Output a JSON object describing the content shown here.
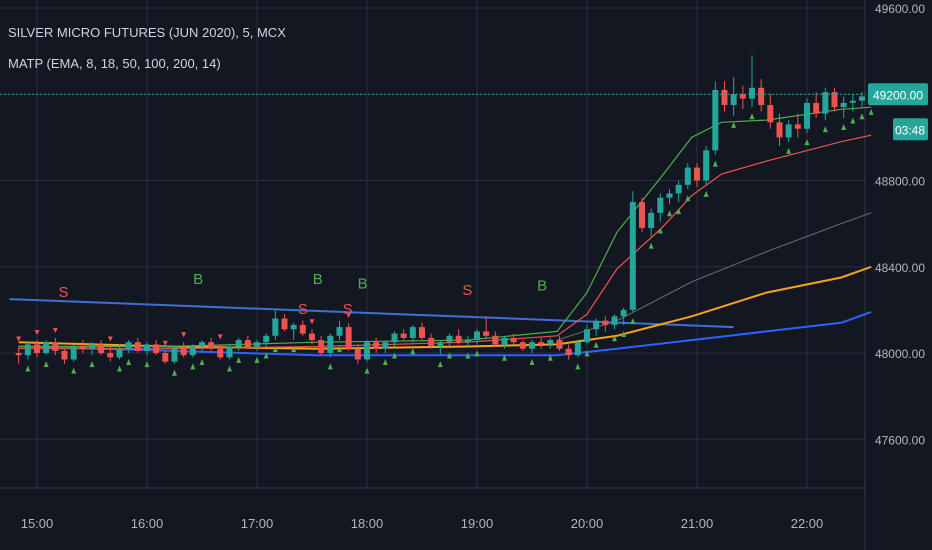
{
  "header": {
    "title": "SILVER MICRO FUTURES (JUN 2020), 5, MCX",
    "indicator": "MATP (EMA, 8, 18, 50, 100, 200, 14)"
  },
  "colors": {
    "background": "#131722",
    "grid": "#2a2e39",
    "axis_text": "#b2b5be",
    "up": "#26a69a",
    "down": "#ef5350",
    "price_label_bg": "#26a69a",
    "ema8": "#4caf50",
    "ema18": "#ef5350",
    "ema50": "#5d606b",
    "ema100": "#f7a21b",
    "ema200": "#2962ff",
    "trendline": "#3d6fd6"
  },
  "chart_data": {
    "type": "candlestick",
    "x_tick_labels": [
      "15:00",
      "16:00",
      "17:00",
      "18:00",
      "19:00",
      "20:00",
      "21:00",
      "22:00"
    ],
    "y_tick_labels": [
      "49600.00",
      "49200.00",
      "48800.00",
      "48400.00",
      "48000.00",
      "47600.00"
    ],
    "ylim": [
      47450,
      49700
    ],
    "current_price": "49200.00",
    "countdown": "03:48",
    "grid": true,
    "candles": [
      [
        48000,
        48030,
        47950,
        47990
      ],
      [
        47990,
        48050,
        47970,
        48040
      ],
      [
        48040,
        48060,
        47980,
        48000
      ],
      [
        48000,
        48060,
        47990,
        48050
      ],
      [
        48050,
        48070,
        47990,
        48010
      ],
      [
        48010,
        48020,
        47950,
        47970
      ],
      [
        47970,
        48040,
        47960,
        48030
      ],
      [
        48030,
        48060,
        48000,
        48020
      ],
      [
        48020,
        48050,
        47990,
        48040
      ],
      [
        48040,
        48060,
        47990,
        48000
      ],
      [
        48000,
        48030,
        47960,
        47980
      ],
      [
        47980,
        48040,
        47970,
        48020
      ],
      [
        48020,
        48060,
        48000,
        48050
      ],
      [
        48050,
        48070,
        48000,
        48010
      ],
      [
        48010,
        48050,
        47990,
        48040
      ],
      [
        48040,
        48060,
        47990,
        48000
      ],
      [
        48000,
        48010,
        47950,
        47960
      ],
      [
        47960,
        48030,
        47950,
        48020
      ],
      [
        48020,
        48050,
        47980,
        47990
      ],
      [
        47990,
        48040,
        47980,
        48030
      ],
      [
        48030,
        48060,
        48000,
        48050
      ],
      [
        48050,
        48070,
        48010,
        48020
      ],
      [
        48020,
        48040,
        47970,
        47980
      ],
      [
        47980,
        48040,
        47970,
        48030
      ],
      [
        48030,
        48070,
        48010,
        48060
      ],
      [
        48060,
        48080,
        48020,
        48030
      ],
      [
        48030,
        48060,
        48010,
        48050
      ],
      [
        48050,
        48090,
        48030,
        48080
      ],
      [
        48080,
        48200,
        48060,
        48160
      ],
      [
        48160,
        48180,
        48100,
        48110
      ],
      [
        48110,
        48140,
        48060,
        48130
      ],
      [
        48130,
        48150,
        48080,
        48090
      ],
      [
        48090,
        48110,
        48040,
        48060
      ],
      [
        48060,
        48080,
        47990,
        48000
      ],
      [
        48000,
        48090,
        47980,
        48080
      ],
      [
        48080,
        48150,
        48060,
        48120
      ],
      [
        48120,
        48140,
        48010,
        48020
      ],
      [
        48020,
        48040,
        47950,
        47970
      ],
      [
        47970,
        48060,
        47960,
        48050
      ],
      [
        48050,
        48070,
        48000,
        48020
      ],
      [
        48020,
        48060,
        48000,
        48050
      ],
      [
        48050,
        48100,
        48030,
        48090
      ],
      [
        48090,
        48110,
        48060,
        48070
      ],
      [
        48070,
        48130,
        48050,
        48120
      ],
      [
        48120,
        48140,
        48060,
        48070
      ],
      [
        48070,
        48090,
        48020,
        48030
      ],
      [
        48030,
        48060,
        47990,
        48050
      ],
      [
        48050,
        48090,
        48030,
        48080
      ],
      [
        48080,
        48110,
        48040,
        48050
      ],
      [
        48050,
        48080,
        48030,
        48060
      ],
      [
        48060,
        48110,
        48040,
        48100
      ],
      [
        48100,
        48170,
        48070,
        48080
      ],
      [
        48080,
        48100,
        48030,
        48040
      ],
      [
        48040,
        48080,
        48020,
        48070
      ],
      [
        48070,
        48090,
        48040,
        48050
      ],
      [
        48050,
        48060,
        48010,
        48020
      ],
      [
        48020,
        48060,
        48000,
        48050
      ],
      [
        48050,
        48070,
        48020,
        48040
      ],
      [
        48040,
        48070,
        48020,
        48060
      ],
      [
        48060,
        48080,
        48010,
        48020
      ],
      [
        48020,
        48040,
        47970,
        47990
      ],
      [
        47990,
        48060,
        47980,
        48050
      ],
      [
        48050,
        48130,
        48040,
        48110
      ],
      [
        48110,
        48160,
        48080,
        48150
      ],
      [
        48150,
        48170,
        48100,
        48130
      ],
      [
        48130,
        48180,
        48110,
        48170
      ],
      [
        48170,
        48210,
        48130,
        48200
      ],
      [
        48200,
        48750,
        48190,
        48700
      ],
      [
        48700,
        48720,
        48560,
        48580
      ],
      [
        48580,
        48670,
        48540,
        48650
      ],
      [
        48650,
        48740,
        48610,
        48720
      ],
      [
        48720,
        48760,
        48690,
        48740
      ],
      [
        48740,
        48800,
        48700,
        48780
      ],
      [
        48780,
        48880,
        48760,
        48860
      ],
      [
        48860,
        48880,
        48770,
        48800
      ],
      [
        48800,
        48960,
        48780,
        48940
      ],
      [
        48940,
        49260,
        48920,
        49220
      ],
      [
        49220,
        49260,
        49120,
        49150
      ],
      [
        49150,
        49280,
        49100,
        49200
      ],
      [
        49200,
        49240,
        49130,
        49180
      ],
      [
        49180,
        49380,
        49140,
        49230
      ],
      [
        49230,
        49270,
        49120,
        49150
      ],
      [
        49150,
        49200,
        49040,
        49070
      ],
      [
        49070,
        49110,
        48960,
        49000
      ],
      [
        49000,
        49080,
        48980,
        49060
      ],
      [
        49060,
        49110,
        49000,
        49040
      ],
      [
        49040,
        49180,
        49020,
        49160
      ],
      [
        49160,
        49210,
        49090,
        49110
      ],
      [
        49110,
        49230,
        49080,
        49210
      ],
      [
        49210,
        49230,
        49120,
        49140
      ],
      [
        49140,
        49190,
        49090,
        49160
      ],
      [
        49160,
        49200,
        49120,
        49170
      ],
      [
        49170,
        49210,
        49140,
        49190
      ],
      [
        49190,
        49230,
        49160,
        49205
      ]
    ],
    "signals": [
      {
        "text": "S",
        "index": 3,
        "price": 48260
      },
      {
        "text": "B",
        "index": 12,
        "price": 48320
      },
      {
        "text": "S",
        "index": 19,
        "price": 48180
      },
      {
        "text": "B",
        "index": 20,
        "price": 48320
      },
      {
        "text": "S",
        "index": 22,
        "price": 48180
      },
      {
        "text": "B",
        "index": 23,
        "price": 48300
      },
      {
        "text": "S",
        "index": 30,
        "price": 48270
      },
      {
        "text": "B",
        "index": 35,
        "price": 48290
      }
    ],
    "ema_lines": [
      {
        "key": "ema200",
        "points": [
          [
            0,
            48030
          ],
          [
            10,
            48010
          ],
          [
            20,
            47990
          ],
          [
            30,
            47990
          ],
          [
            36,
            47990
          ],
          [
            40,
            48020
          ],
          [
            45,
            48060
          ],
          [
            50,
            48100
          ],
          [
            55,
            48140
          ],
          [
            57,
            48190
          ]
        ]
      },
      {
        "key": "ema100",
        "points": [
          [
            0,
            48050
          ],
          [
            10,
            48030
          ],
          [
            20,
            48020
          ],
          [
            30,
            48030
          ],
          [
            36,
            48040
          ],
          [
            40,
            48080
          ],
          [
            45,
            48170
          ],
          [
            50,
            48280
          ],
          [
            55,
            48350
          ],
          [
            57,
            48400
          ]
        ]
      },
      {
        "key": "ema50",
        "points": [
          [
            36,
            48060
          ],
          [
            40,
            48150
          ],
          [
            45,
            48330
          ],
          [
            50,
            48470
          ],
          [
            55,
            48600
          ],
          [
            57,
            48650
          ]
        ]
      },
      {
        "key": "ema18",
        "points": [
          [
            0,
            48020
          ],
          [
            10,
            48020
          ],
          [
            20,
            48030
          ],
          [
            30,
            48050
          ],
          [
            36,
            48080
          ],
          [
            38,
            48180
          ],
          [
            40,
            48390
          ],
          [
            43,
            48580
          ],
          [
            45,
            48730
          ],
          [
            47,
            48830
          ],
          [
            50,
            48890
          ],
          [
            55,
            48980
          ],
          [
            57,
            49010
          ]
        ]
      },
      {
        "key": "ema8",
        "points": [
          [
            0,
            48030
          ],
          [
            10,
            48030
          ],
          [
            20,
            48050
          ],
          [
            30,
            48060
          ],
          [
            36,
            48100
          ],
          [
            38,
            48280
          ],
          [
            40,
            48560
          ],
          [
            43,
            48820
          ],
          [
            45,
            49000
          ],
          [
            47,
            49070
          ],
          [
            50,
            49080
          ],
          [
            55,
            49130
          ],
          [
            57,
            49140
          ]
        ]
      }
    ],
    "trendline": [
      [
        -1,
        48250
      ],
      [
        78,
        48120
      ]
    ]
  }
}
